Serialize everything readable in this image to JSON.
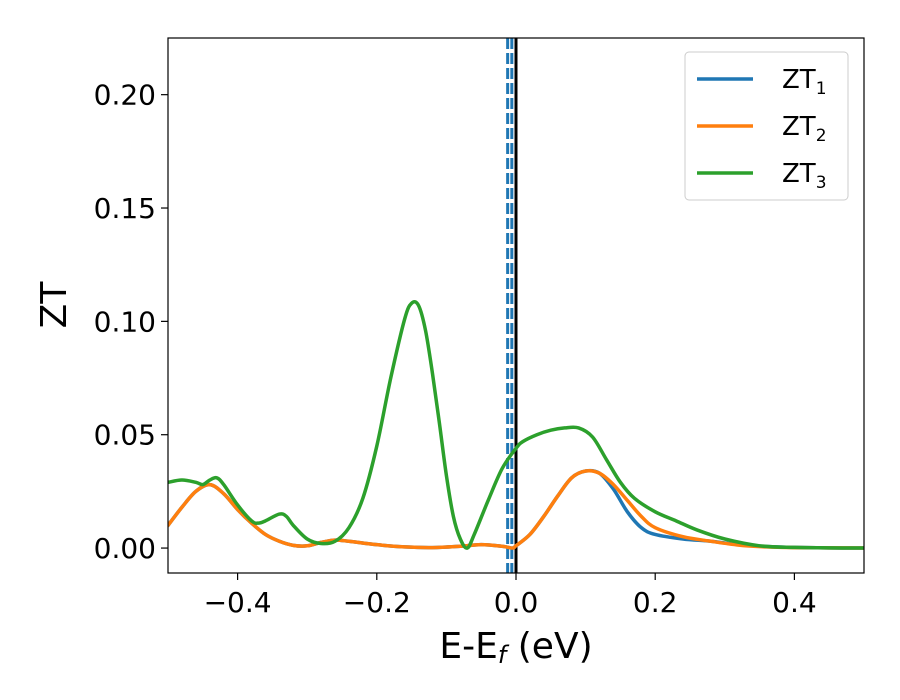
{
  "chart_data": {
    "type": "line",
    "xlabel_main": "E-E",
    "xlabel_sub": "f",
    "xlabel_unit": " (eV)",
    "ylabel": "ZT",
    "xlim": [
      -0.5,
      0.5
    ],
    "ylim": [
      -0.011,
      0.225
    ],
    "x_ticks": [
      {
        "value": -0.4,
        "label": "−0.4"
      },
      {
        "value": -0.2,
        "label": "−0.2"
      },
      {
        "value": 0.0,
        "label": "0.0"
      },
      {
        "value": 0.2,
        "label": "0.2"
      },
      {
        "value": 0.4,
        "label": "0.4"
      }
    ],
    "y_ticks": [
      {
        "value": 0.0,
        "label": "0.00"
      },
      {
        "value": 0.05,
        "label": "0.05"
      },
      {
        "value": 0.1,
        "label": "0.10"
      },
      {
        "value": 0.15,
        "label": "0.15"
      },
      {
        "value": 0.2,
        "label": "0.20"
      }
    ],
    "legend_position": "top-right",
    "vlines": [
      {
        "x": -0.012,
        "style": "dashed",
        "color": "#1f77b4"
      },
      {
        "x": -0.006,
        "style": "dashed",
        "color": "#1f77b4"
      },
      {
        "x": 0.0,
        "style": "solid",
        "color": "#000000"
      }
    ],
    "series": [
      {
        "name": "ZT",
        "subscript": "1",
        "color": "#1f77b4",
        "x": [
          -0.5,
          -0.48,
          -0.46,
          -0.44,
          -0.42,
          -0.4,
          -0.38,
          -0.36,
          -0.34,
          -0.32,
          -0.3,
          -0.28,
          -0.26,
          -0.24,
          -0.2,
          -0.16,
          -0.12,
          -0.08,
          -0.05,
          -0.02,
          -0.005,
          0.0,
          0.02,
          0.04,
          0.06,
          0.08,
          0.1,
          0.12,
          0.14,
          0.16,
          0.18,
          0.2,
          0.24,
          0.28,
          0.32,
          0.36,
          0.4,
          0.45,
          0.5
        ],
        "y": [
          0.01,
          0.018,
          0.025,
          0.028,
          0.024,
          0.017,
          0.011,
          0.006,
          0.003,
          0.0012,
          0.001,
          0.0025,
          0.0035,
          0.003,
          0.0015,
          0.0005,
          0.0002,
          0.0008,
          0.0015,
          0.0008,
          0.0,
          0.001,
          0.006,
          0.014,
          0.023,
          0.031,
          0.034,
          0.033,
          0.026,
          0.016,
          0.009,
          0.006,
          0.004,
          0.003,
          0.0015,
          0.0007,
          0.0003,
          0.0001,
          0.0
        ]
      },
      {
        "name": "ZT",
        "subscript": "2",
        "color": "#ff7f0e",
        "x": [
          -0.5,
          -0.48,
          -0.46,
          -0.44,
          -0.42,
          -0.4,
          -0.38,
          -0.36,
          -0.34,
          -0.32,
          -0.3,
          -0.28,
          -0.26,
          -0.24,
          -0.2,
          -0.16,
          -0.12,
          -0.08,
          -0.05,
          -0.02,
          -0.005,
          0.0,
          0.02,
          0.04,
          0.06,
          0.08,
          0.1,
          0.12,
          0.14,
          0.16,
          0.18,
          0.2,
          0.24,
          0.28,
          0.32,
          0.36,
          0.4,
          0.45,
          0.5
        ],
        "y": [
          0.01,
          0.018,
          0.025,
          0.028,
          0.024,
          0.017,
          0.011,
          0.006,
          0.003,
          0.0012,
          0.001,
          0.0025,
          0.0035,
          0.003,
          0.0015,
          0.0005,
          0.0002,
          0.0008,
          0.0015,
          0.0008,
          0.0,
          0.001,
          0.006,
          0.014,
          0.023,
          0.031,
          0.034,
          0.033,
          0.028,
          0.021,
          0.014,
          0.009,
          0.005,
          0.003,
          0.0013,
          0.0005,
          0.0002,
          0.0001,
          0.0
        ]
      },
      {
        "name": "ZT",
        "subscript": "3",
        "color": "#2ca02c",
        "x": [
          -0.5,
          -0.48,
          -0.46,
          -0.45,
          -0.44,
          -0.43,
          -0.42,
          -0.4,
          -0.38,
          -0.37,
          -0.36,
          -0.34,
          -0.33,
          -0.32,
          -0.3,
          -0.28,
          -0.26,
          -0.24,
          -0.22,
          -0.2,
          -0.18,
          -0.16,
          -0.15,
          -0.14,
          -0.13,
          -0.12,
          -0.11,
          -0.1,
          -0.09,
          -0.08,
          -0.07,
          -0.06,
          -0.04,
          -0.02,
          0.0,
          0.01,
          0.03,
          0.05,
          0.07,
          0.09,
          0.11,
          0.13,
          0.15,
          0.17,
          0.2,
          0.23,
          0.26,
          0.3,
          0.35,
          0.4,
          0.45,
          0.5
        ],
        "y": [
          0.029,
          0.03,
          0.029,
          0.028,
          0.03,
          0.031,
          0.028,
          0.019,
          0.012,
          0.011,
          0.012,
          0.015,
          0.014,
          0.01,
          0.004,
          0.002,
          0.003,
          0.009,
          0.022,
          0.045,
          0.075,
          0.101,
          0.108,
          0.107,
          0.096,
          0.077,
          0.055,
          0.032,
          0.014,
          0.004,
          0.0,
          0.006,
          0.021,
          0.035,
          0.044,
          0.047,
          0.05,
          0.052,
          0.053,
          0.053,
          0.049,
          0.039,
          0.029,
          0.022,
          0.016,
          0.012,
          0.008,
          0.004,
          0.001,
          0.0003,
          0.0001,
          0.0
        ]
      }
    ]
  }
}
